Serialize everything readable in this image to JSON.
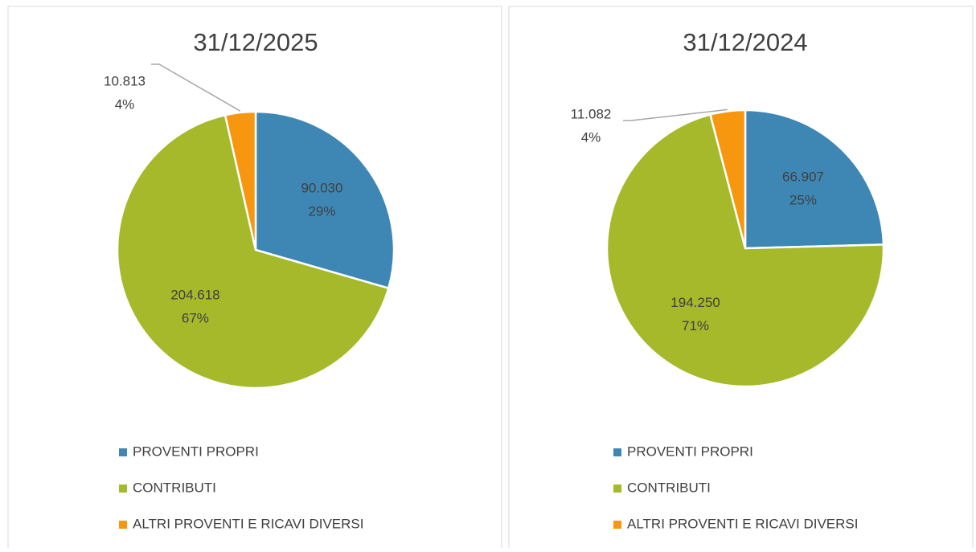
{
  "chart_data": [
    {
      "type": "pie",
      "title": "31/12/2025",
      "categories": [
        "PROVENTI PROPRI",
        "CONTRIBUTI",
        "ALTRI PROVENTI E RICAVI DIVERSI"
      ],
      "values": [
        90030,
        204618,
        10813
      ],
      "value_labels": [
        "90.030",
        "204.618",
        "10.813"
      ],
      "percents": [
        29,
        67,
        4
      ],
      "percent_labels": [
        "29%",
        "67%",
        "4%"
      ],
      "colors": [
        "#3e87b5",
        "#a5b92a",
        "#f7960f"
      ]
    },
    {
      "type": "pie",
      "title": "31/12/2024",
      "categories": [
        "PROVENTI PROPRI",
        "CONTRIBUTI",
        "ALTRI PROVENTI E RICAVI DIVERSI"
      ],
      "values": [
        66907,
        194250,
        11082
      ],
      "value_labels": [
        "66.907",
        "194.250",
        "11.082"
      ],
      "percents": [
        25,
        71,
        4
      ],
      "percent_labels": [
        "25%",
        "71%",
        "4%"
      ],
      "colors": [
        "#3e87b5",
        "#a5b92a",
        "#f7960f"
      ]
    }
  ]
}
